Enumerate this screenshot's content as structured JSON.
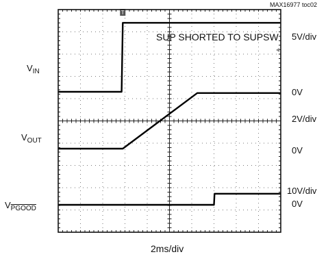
{
  "tag": "MAX16977 toc02",
  "annotation": "SUP SHORTED TO SUPSW",
  "time_scale": "2ms/div",
  "channels": [
    {
      "label_main": "V",
      "label_sub": "IN",
      "scale": "5V/div",
      "zero": "0V"
    },
    {
      "label_main": "V",
      "label_sub": "OUT",
      "scale": "2V/div",
      "zero": "0V"
    },
    {
      "label_main": "V",
      "label_sub": "PGOOD",
      "scale": "10V/div",
      "zero": "0V"
    }
  ],
  "chart_data": {
    "type": "line",
    "title": "SUP SHORTED TO SUPSW",
    "xlabel": "2ms/div",
    "ylabel": "",
    "grid": true,
    "x_unit": "ms",
    "xlim": [
      0,
      20
    ],
    "series": [
      {
        "name": "VIN",
        "volts_per_div": 5,
        "x": [
          0,
          5.7,
          5.8,
          20
        ],
        "y": [
          0,
          0,
          15.5,
          15.5
        ]
      },
      {
        "name": "VOUT",
        "volts_per_div": 2,
        "x": [
          0,
          5.8,
          12.5,
          20
        ],
        "y": [
          0,
          0,
          5.0,
          5.0
        ]
      },
      {
        "name": "VPGOOD",
        "volts_per_div": 10,
        "x": [
          0,
          14.0,
          14.05,
          20
        ],
        "y": [
          0,
          0,
          5.0,
          5.0
        ]
      }
    ],
    "trigger_marker": "T"
  }
}
